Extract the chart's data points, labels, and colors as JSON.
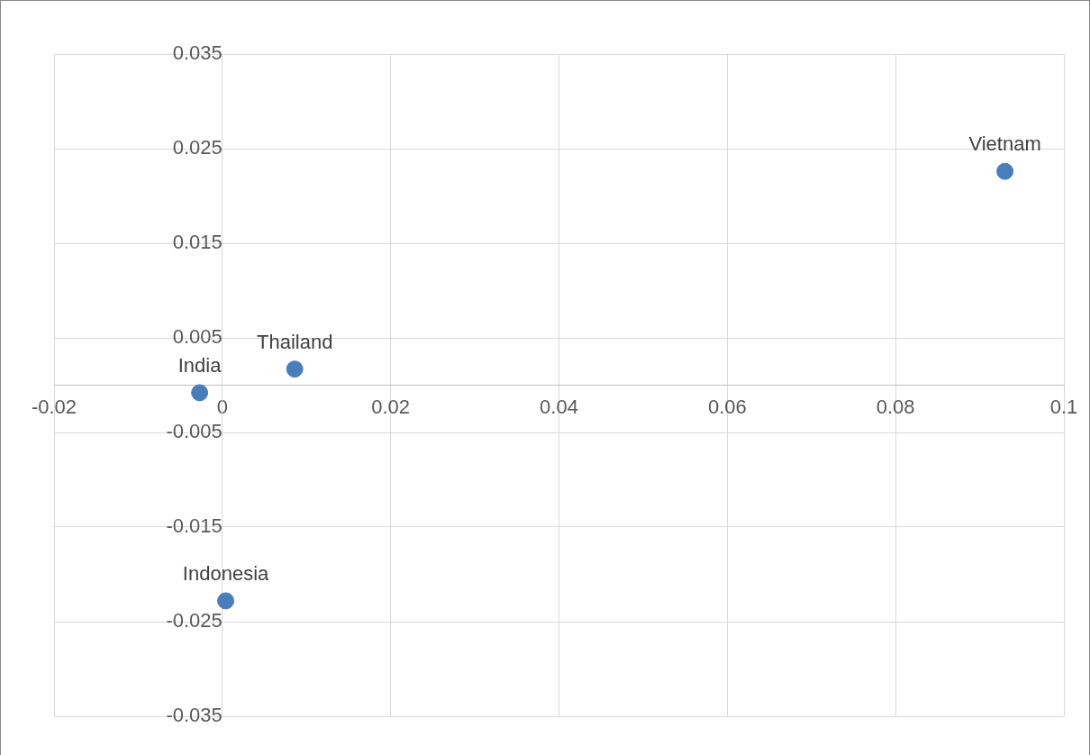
{
  "chart_data": {
    "type": "scatter",
    "marker": "circle",
    "grid": true,
    "series": [
      {
        "name": "Vietnam",
        "color": "#4a7ebb",
        "x": [
          0.093
        ],
        "values": [
          0.0226
        ]
      },
      {
        "name": "Thailand",
        "color": "#4a7ebb",
        "x": [
          0.0086
        ],
        "values": [
          0.0017
        ]
      },
      {
        "name": "India",
        "color": "#4a7ebb",
        "x": [
          -0.0027
        ],
        "values": [
          -0.0008
        ]
      },
      {
        "name": "Indonesia",
        "color": "#4a7ebb",
        "x": [
          0.0004
        ],
        "values": [
          -0.0228
        ]
      }
    ],
    "xlim": [
      -0.02,
      0.1
    ],
    "xticks": [
      -0.02,
      0,
      0.02,
      0.04,
      0.06,
      0.08,
      0.1
    ],
    "ylim": [
      -0.035,
      0.035
    ],
    "yticks": [
      -0.035,
      -0.025,
      -0.015,
      -0.005,
      0.005,
      0.015,
      0.025,
      0.035
    ]
  }
}
